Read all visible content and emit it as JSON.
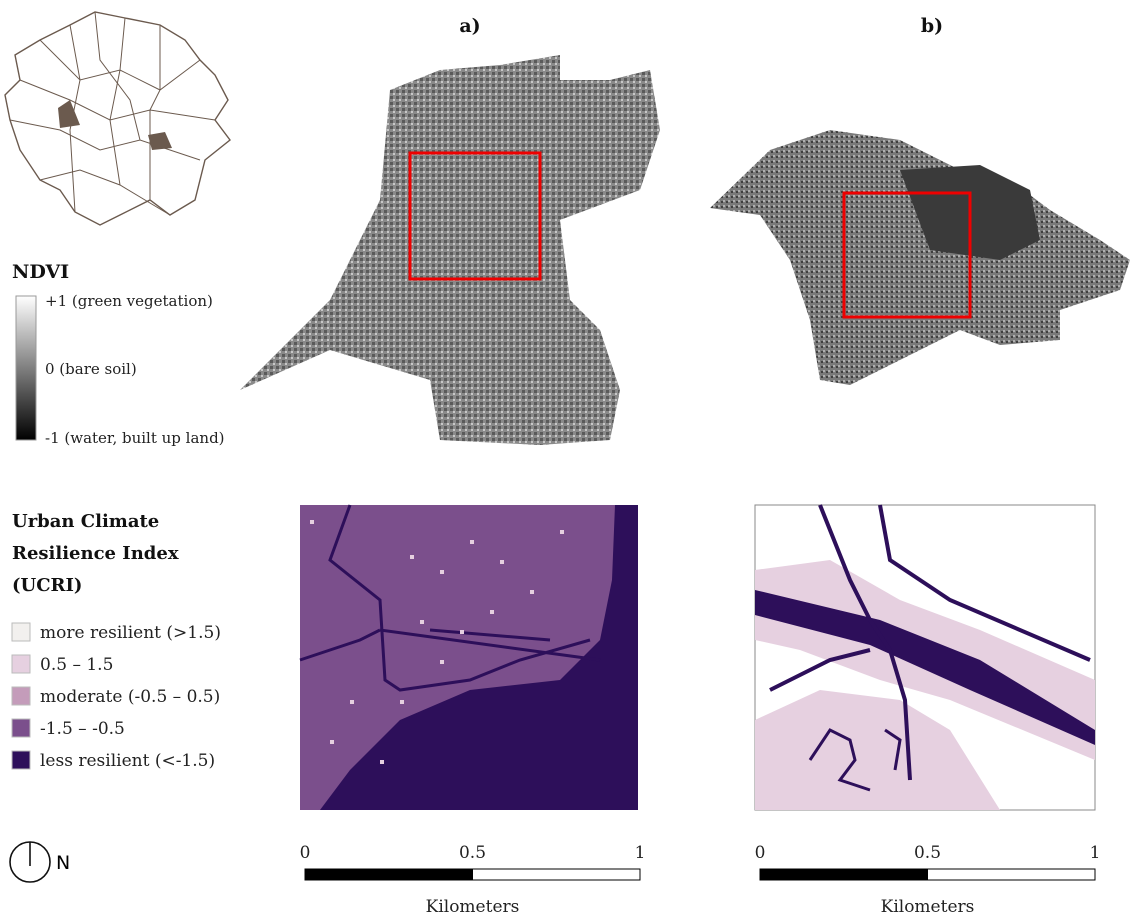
{
  "panels": [
    {
      "label": "a)",
      "scale": {
        "ticks": [
          0,
          0.5,
          1
        ],
        "unit": "Kilometers"
      }
    },
    {
      "label": "b)",
      "scale": {
        "ticks": [
          0,
          0.5,
          1
        ],
        "unit": "Kilometers"
      }
    }
  ],
  "ndvi_legend": {
    "title": "NDVI",
    "items": [
      "+1 (green vegetation)",
      "0 (bare soil)",
      "-1 (water, built up land)"
    ]
  },
  "ucri_legend": {
    "title": [
      "Urban Climate",
      "Resilience Index",
      "(UCRI)"
    ],
    "items": [
      "more resilient (>1.5)",
      "0.5 – 1.5",
      "moderate (-0.5 – 0.5)",
      "-1.5 – -0.5",
      "less resilient (<-1.5)"
    ]
  },
  "north": "N"
}
